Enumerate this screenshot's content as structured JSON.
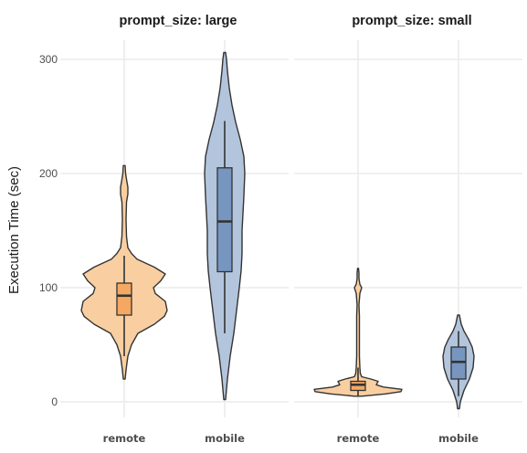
{
  "chart_data": {
    "type": "violin",
    "ylabel": "Execution Time (sec)",
    "ylim": [
      -15,
      322
    ],
    "yticks": [
      0,
      100,
      200,
      300
    ],
    "grid": true,
    "categories": [
      "remote",
      "mobile"
    ],
    "colors": {
      "remote_fill": "#f9cfa1",
      "remote_box": "#f5a861",
      "mobile_fill": "#b3c5dc",
      "mobile_box": "#7796bf",
      "outline": "#333333"
    },
    "panels": [
      {
        "strip": "prompt_size: large",
        "groups": [
          {
            "name": "remote",
            "box": {
              "q1": 76,
              "median": 93,
              "q3": 104,
              "whisker_low": 40,
              "whisker_high": 128
            },
            "violin": {
              "y": [
                20,
                28,
                40,
                50,
                60,
                68,
                75,
                80,
                88,
                95,
                100,
                106,
                112,
                118,
                125,
                130,
                135,
                145,
                160,
                175,
                182,
                188,
                195,
                200,
                207
              ],
              "half_width": [
                1,
                2,
                4,
                8,
                15,
                33,
                44,
                47,
                45,
                34,
                32,
                40,
                45,
                33,
                14,
                8,
                4,
                2.5,
                2,
                2.5,
                4,
                4,
                2.5,
                1.5,
                1
              ]
            }
          },
          {
            "name": "mobile",
            "box": {
              "q1": 114,
              "median": 158,
              "q3": 205,
              "whisker_low": 60,
              "whisker_high": 246
            },
            "violin": {
              "y": [
                2,
                20,
                40,
                60,
                80,
                100,
                115,
                130,
                150,
                165,
                180,
                200,
                215,
                230,
                245,
                260,
                275,
                290,
                300,
                306
              ],
              "half_width": [
                1,
                3,
                6,
                10,
                13,
                16,
                18,
                19,
                19,
                20,
                21,
                22,
                21,
                17,
                12,
                8,
                5,
                3,
                2,
                1
              ]
            }
          }
        ]
      },
      {
        "strip": "prompt_size: small",
        "groups": [
          {
            "name": "remote",
            "box": {
              "q1": 10,
              "median": 15,
              "q3": 18,
              "whisker_low": 5,
              "whisker_high": 30
            },
            "violin": {
              "y": [
                5,
                7,
                9,
                11,
                13,
                15,
                18,
                20,
                22,
                25,
                30,
                40,
                55,
                70,
                75,
                85,
                95,
                100,
                103,
                108,
                113,
                117
              ],
              "half_width": [
                4,
                30,
                47,
                48,
                28,
                20,
                22,
                14,
                4,
                2.5,
                2,
                1.5,
                1.5,
                1.5,
                1.5,
                1,
                2,
                4,
                2,
                1,
                1,
                0.5
              ]
            }
          },
          {
            "name": "mobile",
            "box": {
              "q1": 20,
              "median": 35,
              "q3": 48,
              "whisker_low": 5,
              "whisker_high": 62
            },
            "violin": {
              "y": [
                -6,
                0,
                10,
                20,
                30,
                40,
                48,
                55,
                62,
                68,
                72,
                76
              ],
              "half_width": [
                1,
                2,
                6,
                12,
                16,
                17,
                15,
                11,
                6,
                3,
                2,
                1
              ]
            }
          }
        ]
      }
    ]
  }
}
